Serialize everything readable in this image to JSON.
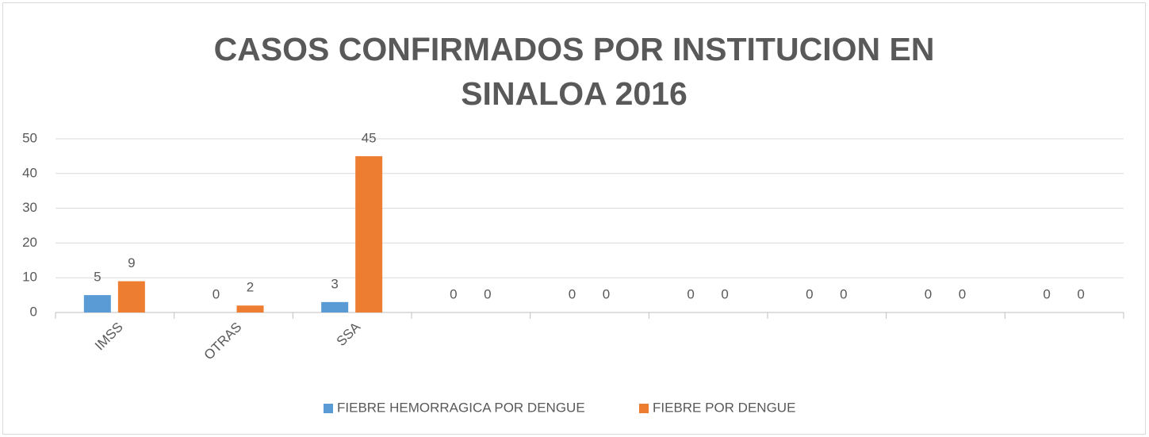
{
  "chart_data": {
    "type": "bar",
    "title": "CASOS CONFIRMADOS POR INSTITUCION EN SINALOA 2016",
    "categories": [
      "IMSS",
      "OTRAS",
      "SSA",
      null,
      null,
      null,
      null,
      null,
      null
    ],
    "series": [
      {
        "name": "FIEBRE HEMORRAGICA POR DENGUE",
        "color": "#5b9bd5",
        "values": [
          5,
          0,
          3,
          0,
          0,
          0,
          0,
          0,
          0
        ]
      },
      {
        "name": "FIEBRE POR DENGUE",
        "color": "#ed7d31",
        "values": [
          9,
          2,
          45,
          0,
          0,
          0,
          0,
          0,
          0
        ]
      }
    ],
    "ylim": [
      0,
      50
    ],
    "yticks": [
      0,
      10,
      20,
      30,
      40,
      50
    ],
    "grid": true,
    "legend": "bottom"
  }
}
